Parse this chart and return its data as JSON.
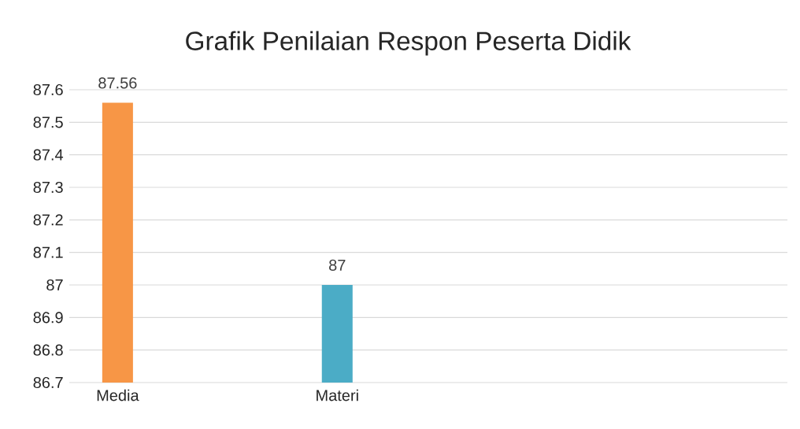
{
  "chart_data": {
    "type": "bar",
    "title": "Grafik Penilaian Respon Peserta Didik",
    "categories": [
      "Media",
      "Materi"
    ],
    "values": [
      87.56,
      87
    ],
    "colors": [
      "#f79646",
      "#4bacc6"
    ],
    "value_labels": [
      "87.56",
      "87"
    ],
    "ylim": [
      86.7,
      87.6
    ],
    "yticks": [
      86.7,
      86.8,
      86.9,
      87,
      87.1,
      87.2,
      87.3,
      87.4,
      87.5,
      87.6
    ],
    "grid": "y"
  }
}
